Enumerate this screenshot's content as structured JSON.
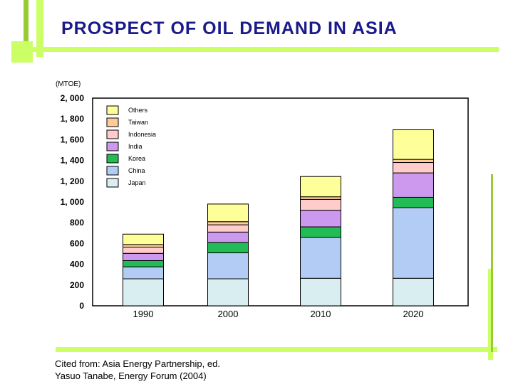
{
  "slide": {
    "title": "PROSPECT OF OIL DEMAND IN ASIA",
    "unit_label": "(MTOE)",
    "source_line1": "Cited from: Asia Energy Partnership, ed.",
    "source_line2": "Yasuo Tanabe, Energy Forum (2004)"
  },
  "chart_data": {
    "type": "bar",
    "stacked": true,
    "categories": [
      "1990",
      "2000",
      "2010",
      "2020"
    ],
    "ylim": [
      0,
      2000
    ],
    "y_ticks": [
      0,
      200,
      400,
      600,
      800,
      1000,
      1200,
      1400,
      1600,
      1800,
      2000
    ],
    "y_tick_labels": [
      "0",
      "200",
      "400",
      "600",
      "800",
      "1, 000",
      "1, 200",
      "1, 400",
      "1, 600",
      "1, 800",
      "2, 000"
    ],
    "grid": false,
    "legend_position": "top-left",
    "series": [
      {
        "name": "Japan",
        "color": "#d9eef0",
        "values": [
          260,
          260,
          265,
          265
        ]
      },
      {
        "name": "China",
        "color": "#b3ccf5",
        "values": [
          115,
          250,
          395,
          680
        ]
      },
      {
        "name": "Korea",
        "color": "#22bb55",
        "values": [
          60,
          100,
          100,
          100
        ]
      },
      {
        "name": "India",
        "color": "#cc99ee",
        "values": [
          70,
          100,
          160,
          235
        ]
      },
      {
        "name": "Indonesia",
        "color": "#ffcccc",
        "values": [
          60,
          70,
          105,
          100
        ]
      },
      {
        "name": "Taiwan",
        "color": "#ffcc99",
        "values": [
          25,
          30,
          25,
          30
        ]
      },
      {
        "name": "Others",
        "color": "#ffff99",
        "values": [
          100,
          170,
          195,
          285
        ]
      }
    ]
  }
}
